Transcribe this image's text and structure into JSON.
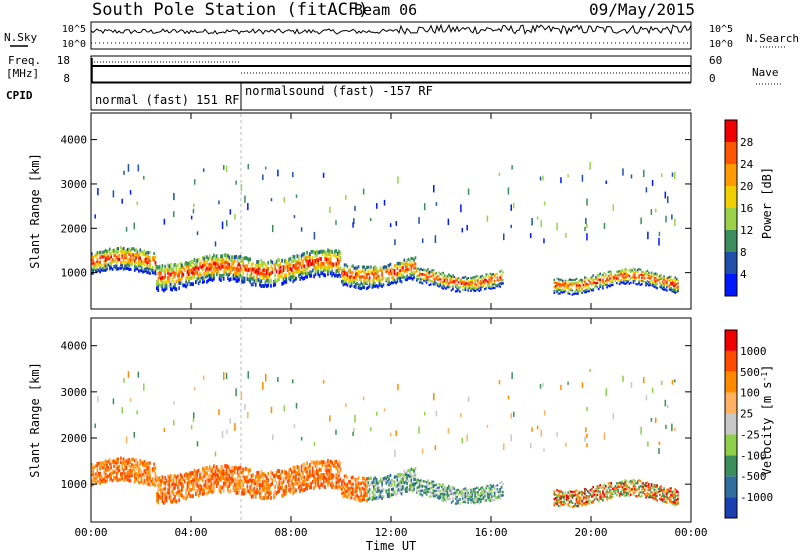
{
  "header": {
    "station": "South Pole Station (fitACF)",
    "beam": "Beam 06",
    "date": "09/May/2015"
  },
  "chart_data": [
    {
      "type": "line",
      "name": "sky-noise-and-search-noise-strip",
      "left_label": "N.Sky",
      "right_label": "N.Search",
      "left_ticks": [
        "10^5",
        "10^0"
      ],
      "right_ticks": [
        "10^5",
        "10^0"
      ]
    },
    {
      "type": "line",
      "name": "frequency-and-nave-strip",
      "left_label_line1": "Freq.",
      "left_label_line2": "[MHz]",
      "right_label": "Nave",
      "left_ticks": [
        18,
        8
      ],
      "right_ticks": [
        60,
        0
      ]
    },
    {
      "type": "table",
      "name": "cpid-strip",
      "label": "CPID",
      "segments": [
        {
          "label": "normal (fast) 151 RF",
          "start_hour": 0,
          "end_hour": 6.0
        },
        {
          "label": "normalsound (fast) -157 RF",
          "start_hour": 6.0,
          "end_hour": 24
        }
      ]
    },
    {
      "type": "heatmap",
      "name": "power-panel",
      "ylabel": "Slant Range [km]",
      "ylim": [
        180,
        4600
      ],
      "y_ticks": [
        1000,
        2000,
        3000,
        4000
      ],
      "colorbar_label": "Power [dB]",
      "colorbar_ticks": [
        4,
        8,
        12,
        16,
        20,
        24,
        28
      ],
      "colorbar_colors": [
        "#0018ff",
        "#1f4fa8",
        "#3c8d5c",
        "#9bd24a",
        "#f0d000",
        "#ff9a00",
        "#ff5400",
        "#f00000"
      ],
      "echo_bands": [
        {
          "start_hour": 0.0,
          "end_hour": 2.6,
          "center_km": 1200,
          "width_km": 500
        },
        {
          "start_hour": 2.6,
          "end_hour": 6.5,
          "center_km": 1000,
          "width_km": 600
        },
        {
          "start_hour": 6.5,
          "end_hour": 10.0,
          "center_km": 1100,
          "width_km": 600
        },
        {
          "start_hour": 10.0,
          "end_hour": 13.0,
          "center_km": 1000,
          "width_km": 500
        },
        {
          "start_hour": 13.0,
          "end_hour": 16.5,
          "center_km": 850,
          "width_km": 350
        },
        {
          "start_hour": 18.5,
          "end_hour": 23.5,
          "center_km": 800,
          "width_km": 350
        }
      ]
    },
    {
      "type": "heatmap",
      "name": "velocity-panel",
      "ylabel": "Slant Range [km]",
      "xlabel": "Time UT",
      "ylim": [
        180,
        4600
      ],
      "y_ticks": [
        1000,
        2000,
        3000,
        4000
      ],
      "x_ticks": [
        "00:00",
        "04:00",
        "08:00",
        "12:00",
        "16:00",
        "20:00",
        "00:00"
      ],
      "x_tick_hours": [
        0,
        4,
        8,
        12,
        16,
        20,
        24
      ],
      "colorbar_label": "Velocity [m s",
      "colorbar_label_sup": "-1",
      "colorbar_label_end": "]",
      "colorbar_ticks": [
        "1000",
        "500",
        "100",
        "25",
        "-25",
        "-100",
        "-500",
        "-1000"
      ],
      "colorbar_colors": [
        "#1a3fb0",
        "#2e6f9f",
        "#3b8f5a",
        "#8fd04a",
        "#c8c8c8",
        "#ffb060",
        "#ff8a00",
        "#ff4a00",
        "#f00000"
      ]
    }
  ]
}
